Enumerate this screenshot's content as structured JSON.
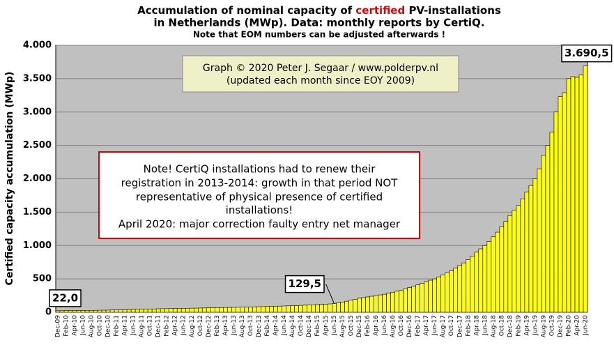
{
  "chart_data": {
    "type": "bar",
    "title_parts": [
      "Accumulation  of nominal capacity of ",
      "certified",
      " PV-installations"
    ],
    "title_line2": "in Netherlands (MWp). Data: monthly  reports by CertiQ.",
    "subtitle": "Note that EOM numbers can be adjusted afterwards  !",
    "y_label": "Certified capacity accumulation (MWp)",
    "credit": [
      "Graph © 2020 Peter J. Segaar / www.polderpv.nl",
      "(updated each month since EOY 2009)"
    ],
    "note": [
      "Note! CertiQ installations had to renew their",
      "registration in 2013-2014:  growth in that period NOT",
      "representative of physical presence of certified",
      "installations!",
      "April 2020:  major correction faulty entry net manager"
    ],
    "categories": [
      "Dec-09",
      null,
      "Feb-10",
      null,
      "Apr-10",
      null,
      "Jun-10",
      null,
      "Aug-10",
      null,
      "Oct-10",
      null,
      "Dec-10",
      null,
      "Feb-11",
      null,
      "Apr-11",
      null,
      "Jun-11",
      null,
      "Aug-11",
      null,
      "Oct-11",
      null,
      "Dec-11",
      null,
      "Feb-12",
      null,
      "Apr-12",
      null,
      "Jun-12",
      null,
      "Aug-12",
      null,
      "Oct-12",
      null,
      "Dec-12",
      null,
      "Feb-13",
      null,
      "Apr-13",
      null,
      "Jun-13",
      null,
      "Aug-13",
      null,
      "Oct-13",
      null,
      "Dec-13",
      null,
      "Feb-14",
      null,
      "Apr-14",
      null,
      "Jun-14",
      null,
      "Aug-14",
      null,
      "Oct-14",
      null,
      "Dec-14",
      null,
      "Feb-15",
      null,
      "Apr-15",
      null,
      "Jun-15",
      null,
      "Aug-15",
      null,
      "Oct-15",
      null,
      "Dec-15",
      null,
      "Feb-16",
      null,
      "Apr-16",
      null,
      "Jun-16",
      null,
      "Aug-16",
      null,
      "Oct-16",
      null,
      "Dec-16",
      null,
      "Feb-17",
      null,
      "Apr-17",
      null,
      "Jun-17",
      null,
      "Aug-17",
      null,
      "Oct-17",
      null,
      "Dec-17",
      null,
      "Feb-18",
      null,
      "Apr-18",
      null,
      "Jun-18",
      null,
      "Aug-18",
      null,
      "Oct-18",
      null,
      "Dec-18",
      null,
      "Feb-19",
      null,
      "Apr-19",
      null,
      "Jun-19",
      null,
      "Aug-19",
      null,
      "Oct-19",
      null,
      "Dec-19",
      null,
      "Feb-20",
      null,
      "Apr-20",
      null,
      "Jun-20"
    ],
    "values": [
      22,
      23,
      24,
      24,
      25,
      26,
      27,
      27,
      28,
      29,
      30,
      31,
      32,
      34,
      35,
      36,
      38,
      40,
      42,
      44,
      45,
      47,
      48,
      50,
      52,
      53,
      54,
      56,
      57,
      58,
      59,
      60,
      61,
      62,
      63,
      64,
      66,
      67,
      68,
      70,
      71,
      72,
      73,
      75,
      76,
      78,
      79,
      81,
      83,
      84,
      86,
      88,
      90,
      92,
      94,
      96,
      98,
      100,
      103,
      106,
      110,
      112,
      115,
      118,
      122,
      125,
      129.5,
      140,
      152,
      165,
      180,
      195,
      210,
      220,
      230,
      240,
      250,
      260,
      270,
      285,
      300,
      315,
      330,
      350,
      370,
      390,
      410,
      435,
      460,
      480,
      500,
      530,
      560,
      590,
      620,
      660,
      700,
      740,
      790,
      840,
      900,
      950,
      1000,
      1060,
      1130,
      1200,
      1280,
      1360,
      1450,
      1530,
      1600,
      1700,
      1800,
      1900,
      2000,
      2150,
      2350,
      2500,
      2700,
      3000,
      3230,
      3290,
      3500,
      3530,
      3520,
      3560,
      3690.5
    ],
    "value_labels": [
      "22,0",
      null,
      null,
      null,
      null,
      null,
      null,
      null,
      null,
      null,
      null,
      null,
      null,
      null,
      null,
      null,
      null,
      null,
      null,
      null,
      null,
      null,
      null,
      null,
      null,
      null,
      null,
      null,
      null,
      null,
      null,
      null,
      null,
      null,
      null,
      null,
      null,
      null,
      null,
      null,
      null,
      null,
      null,
      null,
      null,
      null,
      null,
      null,
      null,
      null,
      null,
      null,
      null,
      null,
      null,
      null,
      null,
      null,
      null,
      null,
      null,
      null,
      null,
      null,
      null,
      null,
      "129,5",
      null,
      null,
      null,
      null,
      null,
      null,
      null,
      null,
      null,
      null,
      null,
      null,
      null,
      null,
      null,
      null,
      null,
      null,
      null,
      null,
      null,
      null,
      null,
      null,
      null,
      null,
      null,
      null,
      null,
      null,
      null,
      null,
      null,
      null,
      null,
      null,
      null,
      null,
      null,
      null,
      null,
      null,
      null,
      null,
      null,
      null,
      null,
      null,
      null,
      null,
      null,
      null,
      null,
      null,
      null,
      null,
      null,
      null,
      null,
      "3.690,5"
    ],
    "color": "#ffff00",
    "ylim": [
      0,
      4000
    ],
    "yticks": [
      0,
      500,
      {
        "value": 1000,
        "label": "1.000"
      },
      {
        "value": 1500,
        "label": "1.500"
      },
      {
        "value": 2000,
        "label": "2.000"
      },
      {
        "value": 2500,
        "label": "2.500"
      },
      {
        "value": 3000,
        "label": "3.000"
      },
      {
        "value": 3500,
        "label": "3.500"
      },
      {
        "value": 4000,
        "label": "4.000"
      }
    ],
    "grid": true
  }
}
